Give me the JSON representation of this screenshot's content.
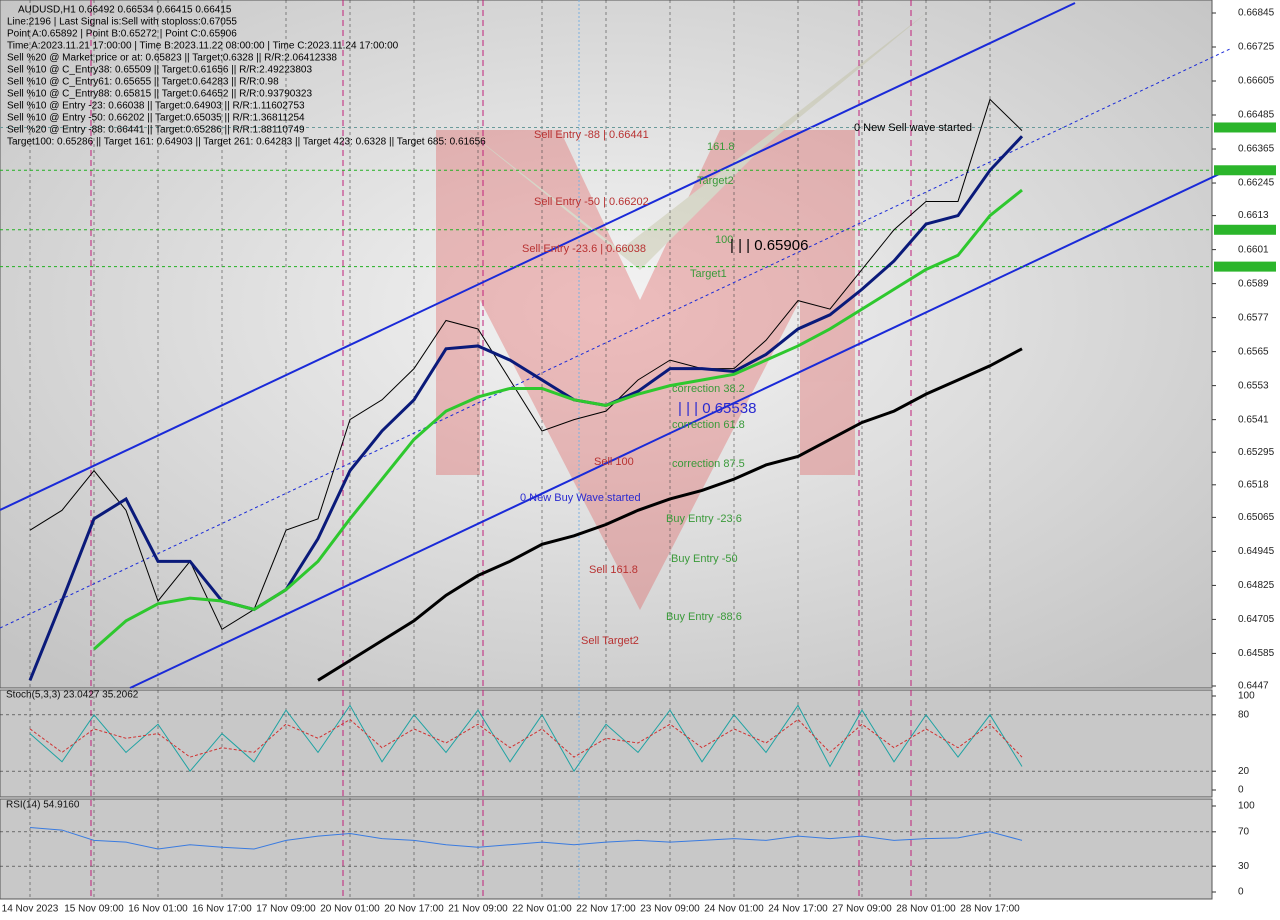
{
  "info_lines": [
    "AUDUSD,H1  0.66492 0.66534 0.66415 0.66415",
    "Line:2196 | Last Signal is:Sell with stoploss:0.67055",
    "Point A:0.65892 | Point B:0.65272 | Point C:0.65906",
    "Time A:2023.11.21 17:00:00 | Time B:2023.11.22 08:00:00 | Time C:2023.11.24 17:00:00",
    "Sell %20 @ Market price or at: 0.65823 || Target:0.6328 || R/R:2.06412338",
    "Sell %10 @ C_Entry38: 0.65509 || Target:0.61656 || R/R:2.49223803",
    "Sell %10 @ C_Entry61: 0.65655 || Target:0.64283 || R/R:0.98",
    "Sell %10 @ C_Entry88: 0.65815 || Target:0.64652 || R/R:0.93790323",
    "Sell %10 @ Entry -23: 0.66038 || Target:0.64903 || R/R:1.11602753",
    "Sell %10 @ Entry -50: 0.66202 || Target:0.65035 || R/R:1.36811254",
    "Sell %20 @ Entry -88: 0.66441 || Target:0.65286 || R/R:1.88110749",
    "Target100: 0.65286 || Target 161: 0.64903 || Target 261: 0.64283 || Target 423: 0.6328 || Target 685: 0.61656"
  ],
  "chart_data": [
    {
      "type": "line",
      "categories": [
        "14 Nov 2023",
        null,
        "15 Nov 09:00",
        null,
        "16 Nov 01:00",
        null,
        "16 Nov 17:00",
        null,
        "17 Nov 09:00",
        null,
        "20 Nov 01:00",
        null,
        "20 Nov 17:00",
        null,
        "21 Nov 09:00",
        null,
        "22 Nov 01:00",
        null,
        "22 Nov 17:00",
        null,
        "23 Nov 09:00",
        null,
        "24 Nov 01:00",
        null,
        "24 Nov 17:00",
        null,
        "27 Nov 09:00",
        null,
        "28 Nov 01:00",
        null,
        "28 Nov 17:00",
        null
      ],
      "series": [
        {
          "color": "#000000",
          "values": [
            0.6502,
            0.6509,
            0.6523,
            0.6509,
            0.6477,
            0.6491,
            0.6467,
            0.6474,
            0.6502,
            0.6506,
            0.6541,
            0.6548,
            0.6559,
            0.6576,
            0.6573,
            0.6555,
            0.6537,
            0.6541,
            0.6544,
            0.6555,
            0.6562,
            0.6559,
            0.6559,
            0.6569,
            0.6583,
            0.658,
            0.6594,
            0.6608,
            0.6618,
            0.6618,
            0.6654,
            0.6643
          ]
        },
        {
          "color": "#0a1a7a",
          "values": [
            0.6449,
            0.6477,
            0.6506,
            0.6513,
            0.6491,
            0.6491,
            0.6477,
            0.6474,
            0.6481,
            0.6499,
            0.6523,
            0.6537,
            0.6548,
            0.6566,
            0.6567,
            0.6562,
            0.6555,
            0.6548,
            0.6546,
            0.6551,
            0.6559,
            0.6559,
            0.6558,
            0.6564,
            0.6573,
            0.6578,
            0.6587,
            0.6597,
            0.661,
            0.6613,
            0.6629,
            0.6641
          ]
        },
        {
          "color": "#2ec82e",
          "values": [
            null,
            null,
            0.646,
            0.647,
            0.6476,
            0.6478,
            0.6477,
            0.6474,
            0.6481,
            0.6491,
            0.6506,
            0.652,
            0.6534,
            0.6544,
            0.6549,
            0.6552,
            0.6552,
            0.6548,
            0.6546,
            0.655,
            0.6553,
            0.6555,
            0.6557,
            0.6562,
            0.6567,
            0.6573,
            0.658,
            0.6587,
            0.6594,
            0.6599,
            0.6613,
            0.6622
          ]
        },
        {
          "color": "#000000",
          "values": [
            null,
            null,
            null,
            null,
            null,
            null,
            null,
            null,
            null,
            0.6449,
            0.6456,
            0.6463,
            0.647,
            0.6479,
            0.6486,
            0.6491,
            0.6497,
            0.65,
            0.6504,
            0.6509,
            0.6513,
            0.6516,
            0.652,
            0.6525,
            0.6528,
            0.6534,
            0.654,
            0.6544,
            0.655,
            0.6555,
            0.656,
            0.6566
          ]
        }
      ],
      "ylim": [
        0.6447,
        0.66845
      ],
      "yticks": [
        0.66845,
        0.66725,
        0.66605,
        0.66485,
        0.66365,
        0.66245,
        0.6613,
        0.6601,
        0.6589,
        0.6577,
        0.6565,
        0.6553,
        0.6541,
        0.65295,
        0.6518,
        0.65065,
        0.64945,
        0.64825,
        0.64705,
        0.64585,
        0.6447
      ],
      "levels": [
        0.66441,
        0.6629,
        0.6608,
        0.6595
      ],
      "annotations": [
        {
          "text": "Sell Entry -88 | 0.66441",
          "color": "#b83232"
        },
        {
          "text": "161.8",
          "color": "#3a9a3a"
        },
        {
          "text": "0 New Sell wave started",
          "color": "#000000"
        },
        {
          "text": "Target2",
          "color": "#3a9a3a"
        },
        {
          "text": "Sell Entry -50 | 0.66202",
          "color": "#b83232"
        },
        {
          "text": "100",
          "color": "#3a9a3a"
        },
        {
          "text": "| | | 0.65906",
          "color": "#000000"
        },
        {
          "text": "Sell Entry -23.6 | 0.66038",
          "color": "#b83232"
        },
        {
          "text": "Target1",
          "color": "#3a9a3a"
        },
        {
          "text": "correction 38.2",
          "color": "#3a9a3a"
        },
        {
          "text": "| | | 0.65538",
          "color": "#2a2ad0"
        },
        {
          "text": "correction 61.8",
          "color": "#3a9a3a"
        },
        {
          "text": "Sell 100",
          "color": "#b83232"
        },
        {
          "text": "correction 87.5",
          "color": "#3a9a3a"
        },
        {
          "text": "0 New Buy Wave started",
          "color": "#2a2ad0"
        },
        {
          "text": "Buy Entry -23.6",
          "color": "#3a9a3a"
        },
        {
          "text": "Buy Entry -50",
          "color": "#3a9a3a"
        },
        {
          "text": "Sell 161.8",
          "color": "#b83232"
        },
        {
          "text": "Buy Entry -88.6",
          "color": "#3a9a3a"
        },
        {
          "text": "Sell Target2",
          "color": "#b83232"
        }
      ]
    },
    {
      "type": "line",
      "title": "Stoch(5,3,3) 23.0427 35.2062",
      "series": [
        {
          "color": "#1fa3a3",
          "values": [
            60,
            30,
            80,
            40,
            70,
            20,
            60,
            30,
            85,
            40,
            90,
            30,
            80,
            40,
            85,
            30,
            80,
            20,
            70,
            40,
            85,
            30,
            80,
            40,
            90,
            25,
            85,
            30,
            80,
            35,
            80,
            25
          ]
        },
        {
          "color": "#d03030",
          "values": [
            65,
            40,
            65,
            55,
            60,
            35,
            45,
            40,
            70,
            55,
            75,
            45,
            65,
            50,
            70,
            45,
            65,
            35,
            55,
            50,
            70,
            45,
            65,
            50,
            75,
            40,
            70,
            45,
            65,
            45,
            70,
            35
          ]
        }
      ],
      "ylim": [
        0,
        100
      ],
      "yticks": [
        100,
        80,
        20,
        0
      ]
    },
    {
      "type": "line",
      "title": "RSI(14) 54.9160",
      "series": [
        {
          "color": "#3a7be0",
          "values": [
            75,
            72,
            60,
            58,
            50,
            55,
            52,
            50,
            60,
            65,
            68,
            62,
            60,
            55,
            52,
            55,
            58,
            55,
            58,
            60,
            58,
            60,
            62,
            60,
            65,
            62,
            65,
            60,
            62,
            63,
            70,
            60
          ]
        }
      ],
      "ylim": [
        0,
        100
      ],
      "yticks": [
        100,
        70,
        30,
        0
      ]
    }
  ]
}
